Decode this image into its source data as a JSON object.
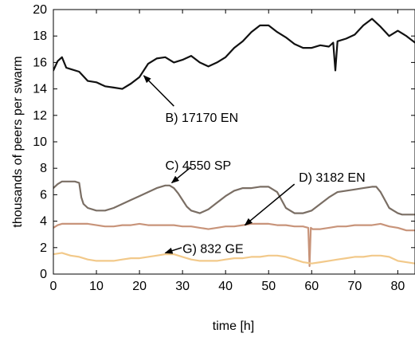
{
  "chart_data": {
    "type": "line",
    "title": "",
    "xlabel": "time [h]",
    "ylabel": "thousands of peers per swarm",
    "xlim": [
      0,
      84
    ],
    "ylim": [
      0,
      20
    ],
    "xticks": [
      0,
      10,
      20,
      30,
      40,
      50,
      60,
      70,
      80
    ],
    "yticks": [
      0,
      2,
      4,
      6,
      8,
      10,
      12,
      14,
      16,
      18,
      20
    ],
    "grid": false,
    "series": [
      {
        "name": "B) 17170 EN",
        "color": "#111111",
        "x": [
          0,
          1,
          2,
          3,
          4,
          6,
          8,
          10,
          12,
          14,
          16,
          18,
          20,
          22,
          24,
          26,
          28,
          30,
          32,
          34,
          36,
          38,
          40,
          42,
          44,
          46,
          48,
          50,
          52,
          54,
          56,
          58,
          60,
          62,
          64,
          65,
          65.5,
          66,
          68,
          70,
          72,
          74,
          76,
          78,
          80,
          82,
          84
        ],
        "y": [
          15.4,
          16.1,
          16.4,
          15.6,
          15.5,
          15.3,
          14.6,
          14.5,
          14.2,
          14.1,
          14.0,
          14.4,
          14.9,
          15.9,
          16.3,
          16.4,
          16.0,
          16.2,
          16.5,
          16.0,
          15.7,
          16.0,
          16.4,
          17.1,
          17.6,
          18.3,
          18.8,
          18.8,
          18.3,
          17.9,
          17.4,
          17.1,
          17.1,
          17.3,
          17.2,
          17.5,
          15.4,
          17.6,
          17.8,
          18.1,
          18.8,
          19.3,
          18.7,
          18.0,
          18.4,
          18.0,
          17.5
        ]
      },
      {
        "name": "C) 4550 SP",
        "color": "#7a6e64",
        "x": [
          0,
          1,
          2,
          3,
          4,
          5,
          6,
          6.5,
          7,
          8,
          10,
          12,
          14,
          16,
          18,
          20,
          22,
          24,
          26,
          27,
          28,
          29,
          30,
          31,
          32,
          34,
          36,
          38,
          40,
          42,
          44,
          46,
          48,
          50,
          52,
          53,
          54,
          55,
          56,
          58,
          60,
          62,
          64,
          66,
          68,
          70,
          72,
          74,
          75,
          76,
          77,
          78,
          79,
          80,
          81,
          82,
          84
        ],
        "y": [
          6.5,
          6.8,
          7.0,
          7.0,
          7.0,
          7.0,
          6.9,
          5.8,
          5.3,
          5.0,
          4.8,
          4.8,
          5.0,
          5.3,
          5.6,
          5.9,
          6.2,
          6.5,
          6.7,
          6.7,
          6.5,
          6.1,
          5.6,
          5.1,
          4.8,
          4.6,
          4.9,
          5.4,
          5.9,
          6.3,
          6.5,
          6.5,
          6.6,
          6.6,
          6.2,
          5.6,
          5.0,
          4.8,
          4.6,
          4.6,
          4.8,
          5.3,
          5.8,
          6.2,
          6.3,
          6.4,
          6.5,
          6.6,
          6.6,
          6.2,
          5.6,
          5.0,
          4.8,
          4.6,
          4.5,
          4.5,
          4.5
        ]
      },
      {
        "name": "D) 3182 EN",
        "color": "#c8947a",
        "x": [
          0,
          1,
          2,
          4,
          6,
          8,
          10,
          12,
          14,
          16,
          18,
          20,
          22,
          24,
          26,
          28,
          30,
          32,
          34,
          36,
          38,
          40,
          42,
          44,
          46,
          48,
          50,
          52,
          54,
          56,
          58,
          59.2,
          59.5,
          59.8,
          60.2,
          62,
          64,
          66,
          68,
          70,
          72,
          74,
          76,
          78,
          80,
          82,
          84
        ],
        "y": [
          3.5,
          3.7,
          3.8,
          3.8,
          3.8,
          3.8,
          3.7,
          3.6,
          3.6,
          3.7,
          3.7,
          3.8,
          3.7,
          3.7,
          3.7,
          3.7,
          3.6,
          3.6,
          3.5,
          3.4,
          3.5,
          3.6,
          3.6,
          3.7,
          3.8,
          3.8,
          3.8,
          3.7,
          3.7,
          3.6,
          3.6,
          3.5,
          0.6,
          3.5,
          3.4,
          3.4,
          3.5,
          3.6,
          3.6,
          3.7,
          3.7,
          3.7,
          3.8,
          3.6,
          3.5,
          3.3,
          3.3
        ]
      },
      {
        "name": "G) 832 GE",
        "color": "#f2c98a",
        "x": [
          0,
          2,
          4,
          6,
          8,
          10,
          12,
          14,
          16,
          18,
          20,
          22,
          24,
          26,
          28,
          30,
          32,
          34,
          36,
          38,
          40,
          42,
          44,
          46,
          48,
          50,
          52,
          54,
          56,
          58,
          60,
          62,
          64,
          66,
          68,
          70,
          72,
          74,
          76,
          78,
          80,
          82,
          84
        ],
        "y": [
          1.5,
          1.6,
          1.4,
          1.3,
          1.1,
          1.0,
          1.0,
          1.0,
          1.1,
          1.2,
          1.2,
          1.3,
          1.4,
          1.5,
          1.5,
          1.3,
          1.1,
          1.0,
          1.0,
          1.0,
          1.1,
          1.2,
          1.2,
          1.3,
          1.3,
          1.4,
          1.4,
          1.3,
          1.1,
          0.9,
          0.8,
          0.9,
          1.0,
          1.1,
          1.2,
          1.3,
          1.3,
          1.4,
          1.4,
          1.3,
          1.0,
          0.9,
          0.8
        ]
      }
    ],
    "annotations": [
      {
        "text": "B) 17170 EN",
        "text_at": [
          26,
          11.8
        ],
        "arrow_from": [
          28,
          12.7
        ],
        "arrow_to": [
          21,
          15.0
        ]
      },
      {
        "text": "C) 4550 SP",
        "text_at": [
          26,
          8.2
        ],
        "arrow_from": [
          32,
          8.1
        ],
        "arrow_to": [
          27.5,
          6.9
        ]
      },
      {
        "text": "D) 3182 EN",
        "text_at": [
          57,
          7.3
        ],
        "arrow_from": [
          56,
          6.8
        ],
        "arrow_to": [
          44.5,
          3.7
        ]
      },
      {
        "text": "G) 832 GE",
        "text_at": [
          30,
          1.9
        ],
        "arrow_from": [
          29.8,
          2.0
        ],
        "arrow_to": [
          26,
          1.6
        ]
      }
    ]
  }
}
